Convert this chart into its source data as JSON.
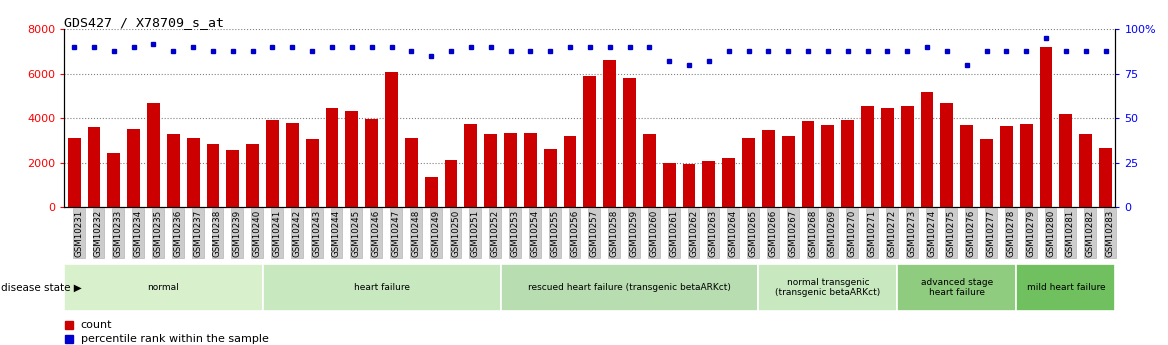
{
  "title": "GDS427 / X78709_s_at",
  "samples": [
    "GSM10231",
    "GSM10232",
    "GSM10233",
    "GSM10234",
    "GSM10235",
    "GSM10236",
    "GSM10237",
    "GSM10238",
    "GSM10239",
    "GSM10240",
    "GSM10241",
    "GSM10242",
    "GSM10243",
    "GSM10244",
    "GSM10245",
    "GSM10246",
    "GSM10247",
    "GSM10248",
    "GSM10249",
    "GSM10250",
    "GSM10251",
    "GSM10252",
    "GSM10253",
    "GSM10254",
    "GSM10255",
    "GSM10256",
    "GSM10257",
    "GSM10258",
    "GSM10259",
    "GSM10260",
    "GSM10261",
    "GSM10262",
    "GSM10263",
    "GSM10264",
    "GSM10265",
    "GSM10266",
    "GSM10267",
    "GSM10268",
    "GSM10269",
    "GSM10270",
    "GSM10271",
    "GSM10272",
    "GSM10273",
    "GSM10274",
    "GSM10275",
    "GSM10276",
    "GSM10277",
    "GSM10278",
    "GSM10279",
    "GSM10280",
    "GSM10281",
    "GSM10282",
    "GSM10283"
  ],
  "counts": [
    3100,
    3600,
    2450,
    3500,
    4700,
    3300,
    3100,
    2850,
    2550,
    2850,
    3900,
    3800,
    3050,
    4450,
    4300,
    3950,
    6100,
    3100,
    1350,
    2100,
    3750,
    3300,
    3350,
    3350,
    2600,
    3200,
    5900,
    6600,
    5800,
    3300,
    2000,
    1950,
    2050,
    2200,
    3100,
    3450,
    3200,
    3850,
    3700,
    3900,
    4550,
    4450,
    4550,
    5200,
    4700,
    3700,
    3050,
    3650,
    3750,
    7200,
    4200,
    3300,
    2650
  ],
  "percentile_ranks": [
    90,
    90,
    88,
    90,
    92,
    88,
    90,
    88,
    88,
    88,
    90,
    90,
    88,
    90,
    90,
    90,
    90,
    88,
    85,
    88,
    90,
    90,
    88,
    88,
    88,
    90,
    90,
    90,
    90,
    90,
    82,
    80,
    82,
    88,
    88,
    88,
    88,
    88,
    88,
    88,
    88,
    88,
    88,
    90,
    88,
    80,
    88,
    88,
    88,
    95,
    88,
    88,
    88
  ],
  "ylim_left": [
    0,
    8000
  ],
  "ylim_right": [
    0,
    100
  ],
  "yticks_left": [
    0,
    2000,
    4000,
    6000,
    8000
  ],
  "yticks_right": [
    0,
    25,
    50,
    75,
    100
  ],
  "bar_color": "#CC0000",
  "dot_color": "#0000CC",
  "disease_groups": [
    {
      "label": "normal",
      "start": 0,
      "end": 10,
      "color": "#d8f0cc"
    },
    {
      "label": "heart failure",
      "start": 10,
      "end": 22,
      "color": "#c8e8c0"
    },
    {
      "label": "rescued heart failure (transgenic betaARKct)",
      "start": 22,
      "end": 35,
      "color": "#b8ddb0"
    },
    {
      "label": "normal transgenic\n(transgenic betaARKct)",
      "start": 35,
      "end": 42,
      "color": "#c8e8c0"
    },
    {
      "label": "advanced stage\nheart failure",
      "start": 42,
      "end": 48,
      "color": "#90cc80"
    },
    {
      "label": "mild heart failure",
      "start": 48,
      "end": 53,
      "color": "#70c060"
    }
  ],
  "disease_state_label": "disease state",
  "legend_count_label": "count",
  "legend_percentile_label": "percentile rank within the sample",
  "fig_width": 11.68,
  "fig_height": 3.45,
  "dpi": 100
}
